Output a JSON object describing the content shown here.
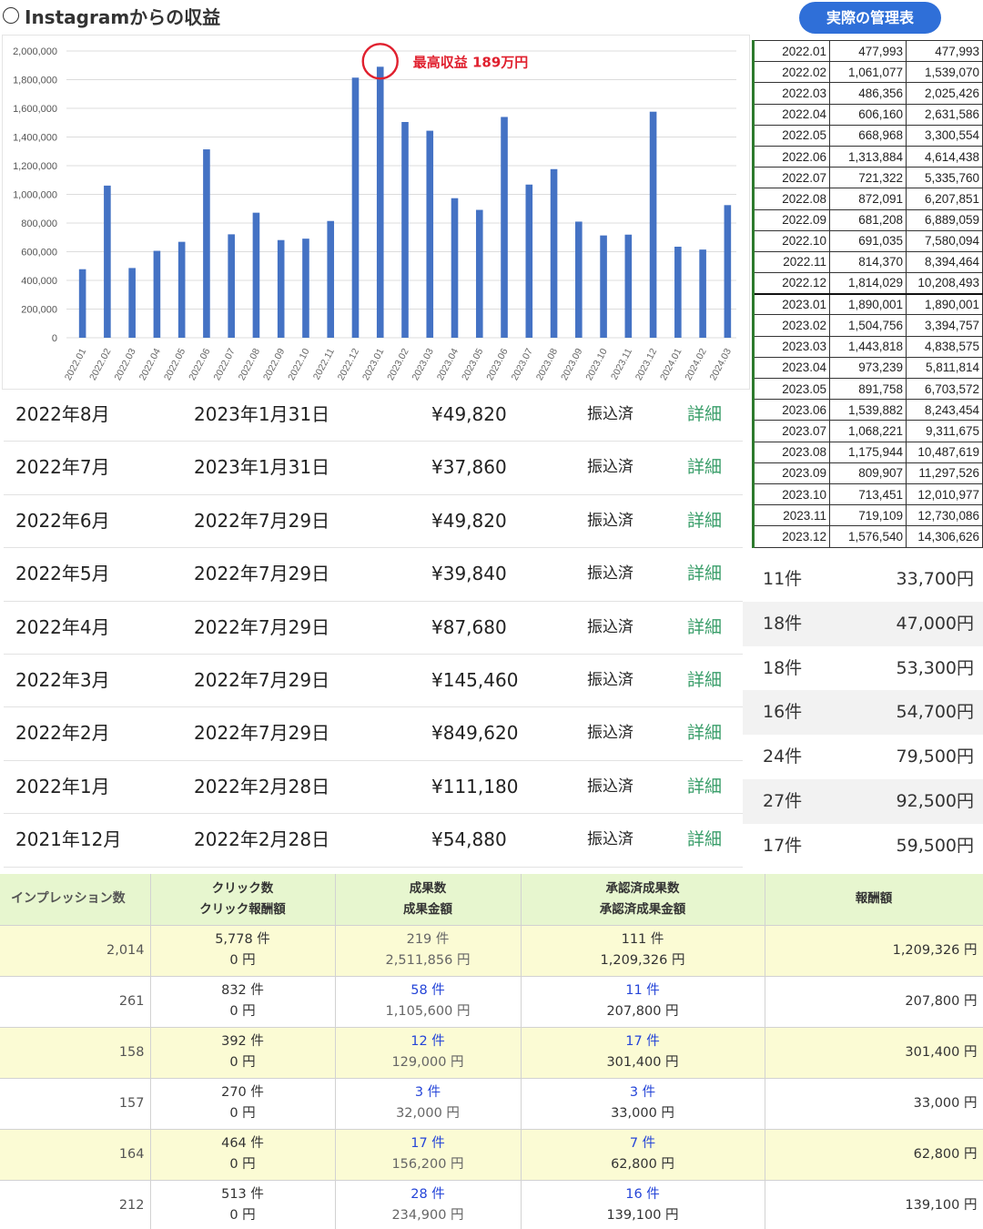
{
  "header": {
    "title": "Instagramからの収益",
    "ledger_button": "実際の管理表"
  },
  "chart_data": {
    "type": "bar",
    "categories": [
      "2022.01",
      "2022.02",
      "2022.03",
      "2022.04",
      "2022.05",
      "2022.06",
      "2022.07",
      "2022.08",
      "2022.09",
      "2022.10",
      "2022.11",
      "2022.12",
      "2023.01",
      "2023.02",
      "2023.03",
      "2023.04",
      "2023.05",
      "2023.06",
      "2023.07",
      "2023.08",
      "2023.09",
      "2023.10",
      "2023.11",
      "2023.12",
      "2024.01",
      "2024.02",
      "2024.03"
    ],
    "values": [
      477993,
      1061077,
      486356,
      606160,
      668968,
      1313884,
      721322,
      872091,
      681208,
      691035,
      814370,
      1814029,
      1890001,
      1504756,
      1443818,
      973239,
      891758,
      1539882,
      1068221,
      1175944,
      809907,
      713451,
      719109,
      1576540,
      635000,
      615000,
      925000
    ],
    "y_ticks": [
      "0",
      "200,000",
      "400,000",
      "600,000",
      "800,000",
      "1,000,000",
      "1,200,000",
      "1,400,000",
      "1,600,000",
      "1,800,000",
      "2,000,000"
    ],
    "ylim": [
      0,
      2000000
    ],
    "grid": true,
    "bar_color": "#4472c4",
    "annotation": {
      "category": "2023.01",
      "text": "最高収益 189万円",
      "color": "#e0202e"
    }
  },
  "monthly_table": [
    [
      "2022.01",
      "477,993",
      "477,993"
    ],
    [
      "2022.02",
      "1,061,077",
      "1,539,070"
    ],
    [
      "2022.03",
      "486,356",
      "2,025,426"
    ],
    [
      "2022.04",
      "606,160",
      "2,631,586"
    ],
    [
      "2022.05",
      "668,968",
      "3,300,554"
    ],
    [
      "2022.06",
      "1,313,884",
      "4,614,438"
    ],
    [
      "2022.07",
      "721,322",
      "5,335,760"
    ],
    [
      "2022.08",
      "872,091",
      "6,207,851"
    ],
    [
      "2022.09",
      "681,208",
      "6,889,059"
    ],
    [
      "2022.10",
      "691,035",
      "7,580,094"
    ],
    [
      "2022.11",
      "814,370",
      "8,394,464"
    ],
    [
      "2022.12",
      "1,814,029",
      "10,208,493"
    ],
    [
      "2023.01",
      "1,890,001",
      "1,890,001"
    ],
    [
      "2023.02",
      "1,504,756",
      "3,394,757"
    ],
    [
      "2023.03",
      "1,443,818",
      "4,838,575"
    ],
    [
      "2023.04",
      "973,239",
      "5,811,814"
    ],
    [
      "2023.05",
      "891,758",
      "6,703,572"
    ],
    [
      "2023.06",
      "1,539,882",
      "8,243,454"
    ],
    [
      "2023.07",
      "1,068,221",
      "9,311,675"
    ],
    [
      "2023.08",
      "1,175,944",
      "10,487,619"
    ],
    [
      "2023.09",
      "809,907",
      "11,297,526"
    ],
    [
      "2023.10",
      "713,451",
      "12,010,977"
    ],
    [
      "2023.11",
      "719,109",
      "12,730,086"
    ],
    [
      "2023.12",
      "1,576,540",
      "14,306,626"
    ]
  ],
  "payouts": [
    {
      "month": "2022年8月",
      "date": "2023年1月31日",
      "amount": "¥49,820",
      "status": "振込済",
      "detail": "詳細"
    },
    {
      "month": "2022年7月",
      "date": "2023年1月31日",
      "amount": "¥37,860",
      "status": "振込済",
      "detail": "詳細"
    },
    {
      "month": "2022年6月",
      "date": "2022年7月29日",
      "amount": "¥49,820",
      "status": "振込済",
      "detail": "詳細"
    },
    {
      "month": "2022年5月",
      "date": "2022年7月29日",
      "amount": "¥39,840",
      "status": "振込済",
      "detail": "詳細"
    },
    {
      "month": "2022年4月",
      "date": "2022年7月29日",
      "amount": "¥87,680",
      "status": "振込済",
      "detail": "詳細"
    },
    {
      "month": "2022年3月",
      "date": "2022年7月29日",
      "amount": "¥145,460",
      "status": "振込済",
      "detail": "詳細"
    },
    {
      "month": "2022年2月",
      "date": "2022年7月29日",
      "amount": "¥849,620",
      "status": "振込済",
      "detail": "詳細"
    },
    {
      "month": "2022年1月",
      "date": "2022年2月28日",
      "amount": "¥111,180",
      "status": "振込済",
      "detail": "詳細"
    },
    {
      "month": "2021年12月",
      "date": "2022年2月28日",
      "amount": "¥54,880",
      "status": "振込済",
      "detail": "詳細"
    }
  ],
  "counts": [
    {
      "count": "11件",
      "sum": "33,700円"
    },
    {
      "count": "18件",
      "sum": "47,000円"
    },
    {
      "count": "18件",
      "sum": "53,300円"
    },
    {
      "count": "16件",
      "sum": "54,700円"
    },
    {
      "count": "24件",
      "sum": "79,500円"
    },
    {
      "count": "27件",
      "sum": "92,500円"
    },
    {
      "count": "17件",
      "sum": "59,500円"
    }
  ],
  "report": {
    "headers": {
      "impressions": "インプレッション数",
      "clicks_1": "クリック数",
      "clicks_2": "クリック報酬額",
      "results_1": "成果数",
      "results_2": "成果金額",
      "approved_1": "承認済成果数",
      "approved_2": "承認済成果金額",
      "payout": "報酬額"
    },
    "rows": [
      {
        "imp": "2,014",
        "clicks": "5,778 件",
        "click_pay": "0 円",
        "results": "219 件",
        "results_amt": "2,511,856 円",
        "approved": "111 件",
        "approved_amt": "1,209,326 円",
        "payout": "1,209,326 円"
      },
      {
        "imp": "261",
        "clicks": "832 件",
        "click_pay": "0 円",
        "results": "58 件",
        "results_amt": "1,105,600 円",
        "approved": "11 件",
        "approved_amt": "207,800 円",
        "payout": "207,800 円"
      },
      {
        "imp": "158",
        "clicks": "392 件",
        "click_pay": "0 円",
        "results": "12 件",
        "results_amt": "129,000 円",
        "approved": "17 件",
        "approved_amt": "301,400 円",
        "payout": "301,400 円"
      },
      {
        "imp": "157",
        "clicks": "270 件",
        "click_pay": "0 円",
        "results": "3 件",
        "results_amt": "32,000 円",
        "approved": "3 件",
        "approved_amt": "33,000 円",
        "payout": "33,000 円"
      },
      {
        "imp": "164",
        "clicks": "464 件",
        "click_pay": "0 円",
        "results": "17 件",
        "results_amt": "156,200 円",
        "approved": "7 件",
        "approved_amt": "62,800 円",
        "payout": "62,800 円"
      },
      {
        "imp": "212",
        "clicks": "513 件",
        "click_pay": "0 円",
        "results": "28 件",
        "results_amt": "234,900 円",
        "approved": "16 件",
        "approved_amt": "139,100 円",
        "payout": "139,100 円"
      }
    ]
  }
}
